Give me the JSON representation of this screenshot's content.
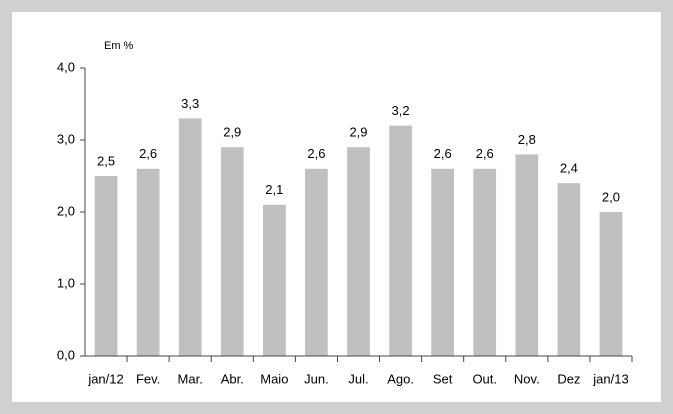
{
  "chart_data": {
    "type": "bar",
    "y_label": "Em %",
    "categories": [
      "jan/12",
      "Fev.",
      "Mar.",
      "Abr.",
      "Maio",
      "Jun.",
      "Jul.",
      "Ago.",
      "Set",
      "Out.",
      "Nov.",
      "Dez",
      "jan/13"
    ],
    "values": [
      2.5,
      2.6,
      3.3,
      2.9,
      2.1,
      2.6,
      2.9,
      3.2,
      2.6,
      2.6,
      2.8,
      2.4,
      2.0
    ],
    "value_labels": [
      "2,5",
      "2,6",
      "3,3",
      "2,9",
      "2,1",
      "2,6",
      "2,9",
      "3,2",
      "2,6",
      "2,6",
      "2,8",
      "2,4",
      "2,0"
    ],
    "color": "#c0c0c0",
    "ylim": [
      0,
      4
    ],
    "yticks": [
      {
        "value": 0,
        "label": "0,0"
      },
      {
        "value": 1,
        "label": "1,0"
      },
      {
        "value": 2,
        "label": "2,0"
      },
      {
        "value": 3,
        "label": "3,0"
      },
      {
        "value": 4,
        "label": "4,0"
      }
    ],
    "grid": false
  }
}
